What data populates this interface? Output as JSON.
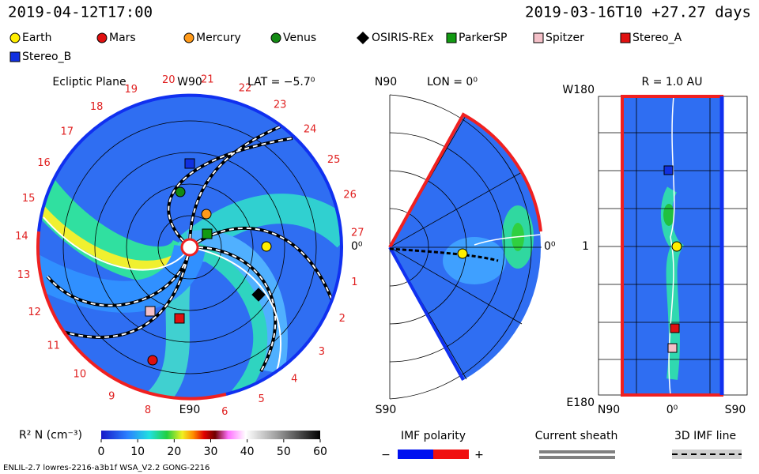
{
  "header": {
    "time": "2019-04-12T17:00",
    "run": "2019-03-16T10 +27.27 days"
  },
  "legend": [
    {
      "name": "Earth",
      "color": "#ffee00",
      "shape": "circle"
    },
    {
      "name": "Mars",
      "color": "#e01010",
      "shape": "circle"
    },
    {
      "name": "Mercury",
      "color": "#ff9a1a",
      "shape": "circle"
    },
    {
      "name": "Venus",
      "color": "#138a13",
      "shape": "circle"
    },
    {
      "name": "OSIRIS-REx",
      "color": "#000000",
      "shape": "diamond"
    },
    {
      "name": "ParkerSP",
      "color": "#129a12",
      "shape": "square"
    },
    {
      "name": "Spitzer",
      "color": "#f4c0c8",
      "shape": "square"
    },
    {
      "name": "Stereo_A",
      "color": "#e01010",
      "shape": "square"
    },
    {
      "name": "Stereo_B",
      "color": "#1030e0",
      "shape": "square"
    }
  ],
  "ecliptic": {
    "title": "Ecliptic Plane",
    "top": "W90",
    "lat": "LAT = −5.7⁰",
    "right": "0⁰",
    "bottom": "E90",
    "day_labels": [
      "1",
      "2",
      "3",
      "4",
      "5",
      "6",
      "8",
      "9",
      "10",
      "11",
      "12",
      "13",
      "14",
      "15",
      "16",
      "17",
      "18",
      "19",
      "20",
      "21",
      "22",
      "23",
      "24",
      "25",
      "26",
      "27"
    ]
  },
  "meridional": {
    "top": "N90",
    "lon": "LON = 0⁰",
    "right": "0⁰",
    "bottom": "S90"
  },
  "radial": {
    "title": "R = 1.0 AU",
    "top": "W180",
    "middle": "1",
    "bottom": "E180",
    "x_left": "N90",
    "x_mid": "0⁰",
    "x_right": "S90"
  },
  "colorbar": {
    "label": "R² N (cm⁻³)",
    "lim": [
      0,
      60
    ],
    "ticks": [
      0,
      10,
      20,
      30,
      40,
      50,
      60
    ]
  },
  "keys": {
    "polarity": "IMF polarity",
    "minus": "−",
    "plus": "+",
    "sheath": "Current sheath",
    "imf_line": "3D IMF line"
  },
  "footer": "ENLIL-2.7 lowres-2216-a3b1f WSA_V2.2 GONG-2216"
}
